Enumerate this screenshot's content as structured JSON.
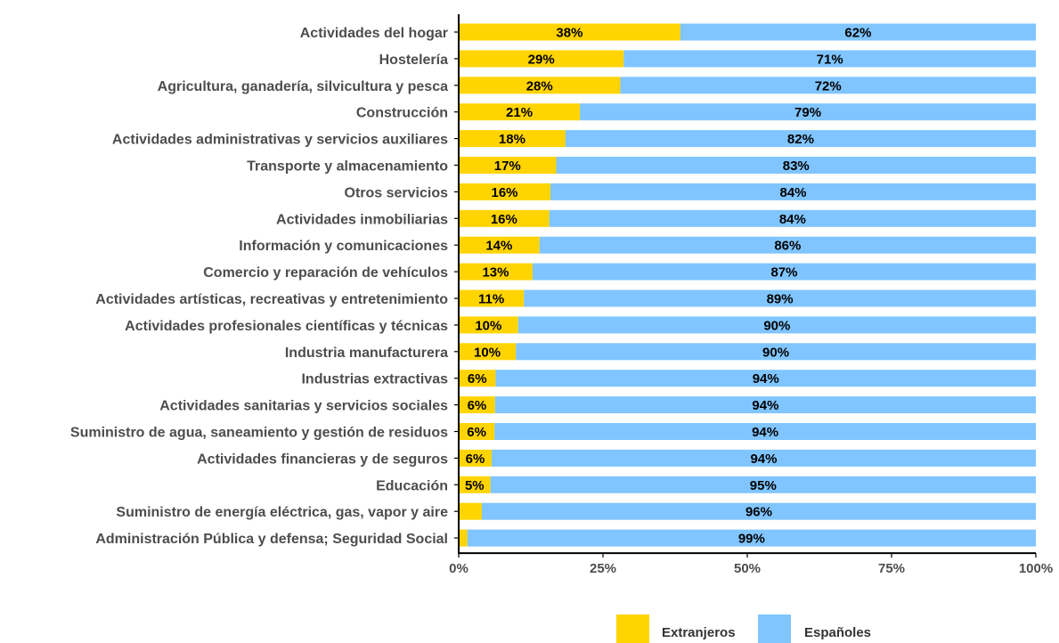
{
  "chart_data": {
    "type": "bar",
    "orientation": "horizontal",
    "stacked": true,
    "categories": [
      "Actividades del hogar",
      "Hostelería",
      "Agricultura, ganadería, silvicultura y pesca",
      "Construcción",
      "Actividades administrativas y servicios auxiliares",
      "Transporte y almacenamiento",
      "Otros servicios",
      "Actividades inmobiliarias",
      "Información y comunicaciones",
      "Comercio y reparación de vehículos",
      "Actividades artísticas, recreativas y entretenimiento",
      "Actividades profesionales científicas y técnicas",
      "Industria manufacturera",
      "Industrias extractivas",
      "Actividades sanitarias y servicios sociales",
      "Suministro de agua, saneamiento y gestión de residuos",
      "Actividades financieras y de seguros",
      "Educación",
      "Suministro de energía eléctrica, gas, vapor y aire",
      "Administración Pública y defensa; Seguridad Social"
    ],
    "series": [
      {
        "name": "Extranjeros",
        "color": "#FFD400",
        "values": [
          38.4,
          28.6,
          28.0,
          21.0,
          18.5,
          16.9,
          15.9,
          15.7,
          14.0,
          12.8,
          11.3,
          10.3,
          9.9,
          6.4,
          6.3,
          6.2,
          5.7,
          5.5,
          4.0,
          1.5
        ],
        "labels": [
          "38%",
          "29%",
          "28%",
          "21%",
          "18%",
          "17%",
          "16%",
          "16%",
          "14%",
          "13%",
          "11%",
          "10%",
          "10%",
          "6%",
          "6%",
          "6%",
          "6%",
          "5%",
          "",
          ""
        ]
      },
      {
        "name": "Españoles",
        "color": "#80C5FF",
        "values": [
          61.6,
          71.4,
          72.0,
          79.0,
          81.5,
          83.1,
          84.1,
          84.3,
          86.0,
          87.2,
          88.7,
          89.7,
          90.1,
          93.6,
          93.7,
          93.8,
          94.3,
          94.5,
          96.0,
          98.5
        ],
        "labels": [
          "62%",
          "71%",
          "72%",
          "79%",
          "82%",
          "83%",
          "84%",
          "84%",
          "86%",
          "87%",
          "89%",
          "90%",
          "90%",
          "94%",
          "94%",
          "94%",
          "94%",
          "95%",
          "96%",
          "99%"
        ]
      }
    ],
    "xlim": [
      0,
      100
    ],
    "x_ticks": [
      0,
      25,
      50,
      75,
      100
    ],
    "x_tick_labels": [
      "0%",
      "25%",
      "50%",
      "75%",
      "100%"
    ],
    "title": "",
    "xlabel": "",
    "ylabel": "",
    "grid": false,
    "legend_position": "bottom"
  }
}
